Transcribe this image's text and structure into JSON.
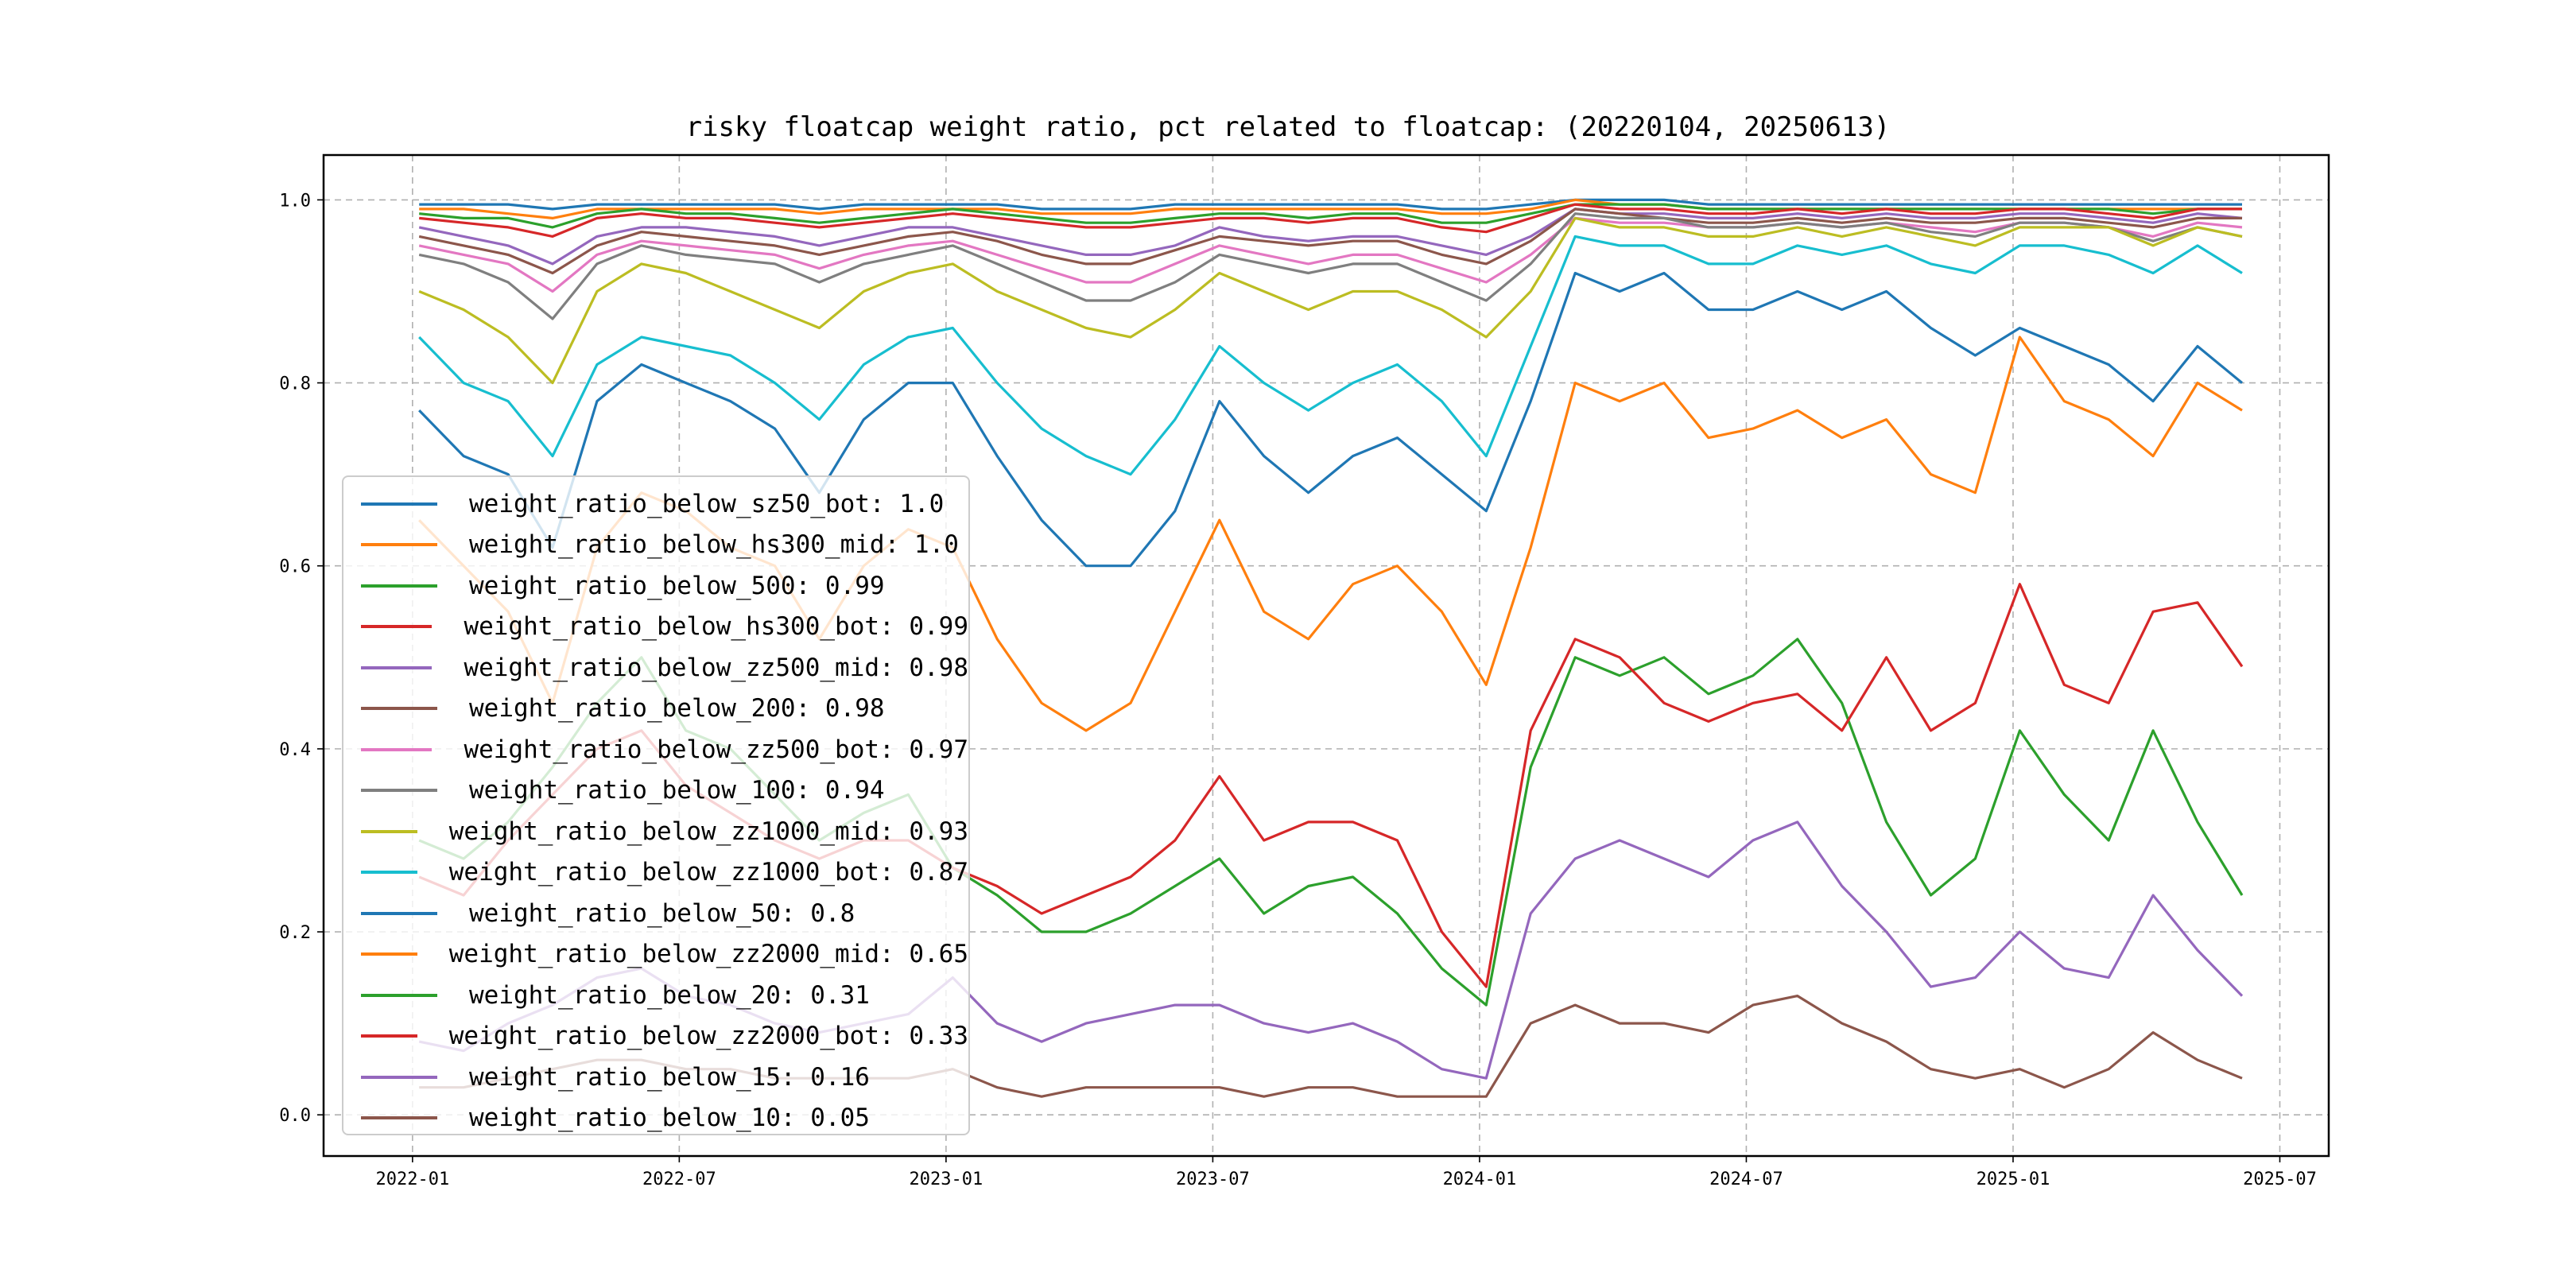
{
  "chart_data": {
    "type": "line",
    "title": "risky floatcap weight ratio, pct related to floatcap: (20220104, 20250613)",
    "xlabel": "",
    "ylabel": "",
    "x_ticks": [
      "2022-01",
      "2022-07",
      "2023-01",
      "2023-07",
      "2024-01",
      "2024-07",
      "2025-01",
      "2025-07"
    ],
    "y_ticks": [
      "0.0",
      "0.2",
      "0.4",
      "0.6",
      "0.8",
      "1.0"
    ],
    "ylim": [
      -0.045,
      1.049
    ],
    "xlim_months_from_2022_01": [
      -2.0,
      43.1
    ],
    "grid": true,
    "legend_position": "lower-left",
    "x": [
      "2022-01",
      "2022-02",
      "2022-03",
      "2022-04",
      "2022-05",
      "2022-06",
      "2022-07",
      "2022-08",
      "2022-09",
      "2022-10",
      "2022-11",
      "2022-12",
      "2023-01",
      "2023-02",
      "2023-03",
      "2023-04",
      "2023-05",
      "2023-06",
      "2023-07",
      "2023-08",
      "2023-09",
      "2023-10",
      "2023-11",
      "2023-12",
      "2024-01",
      "2024-02",
      "2024-03",
      "2024-04",
      "2024-05",
      "2024-06",
      "2024-07",
      "2024-08",
      "2024-09",
      "2024-10",
      "2024-11",
      "2024-12",
      "2025-01",
      "2025-02",
      "2025-03",
      "2025-04",
      "2025-05",
      "2025-06"
    ],
    "series": [
      {
        "name": "weight_ratio_below_sz50_bot: 1.0",
        "color": "#1f77b4",
        "values": [
          0.995,
          0.995,
          0.995,
          0.99,
          0.995,
          0.995,
          0.995,
          0.995,
          0.995,
          0.99,
          0.995,
          0.995,
          0.995,
          0.995,
          0.99,
          0.99,
          0.99,
          0.995,
          0.995,
          0.995,
          0.995,
          0.995,
          0.995,
          0.99,
          0.99,
          0.995,
          1.0,
          1.0,
          1.0,
          0.995,
          0.995,
          0.995,
          0.995,
          0.995,
          0.995,
          0.995,
          0.995,
          0.995,
          0.995,
          0.995,
          0.995,
          0.995
        ]
      },
      {
        "name": "weight_ratio_below_hs300_mid: 1.0",
        "color": "#ff7f0e",
        "values": [
          0.99,
          0.99,
          0.985,
          0.98,
          0.99,
          0.99,
          0.99,
          0.99,
          0.99,
          0.985,
          0.99,
          0.99,
          0.99,
          0.99,
          0.985,
          0.985,
          0.985,
          0.99,
          0.99,
          0.99,
          0.99,
          0.99,
          0.99,
          0.985,
          0.985,
          0.99,
          1.0,
          0.995,
          0.995,
          0.99,
          0.99,
          0.99,
          0.99,
          0.99,
          0.99,
          0.99,
          0.99,
          0.99,
          0.99,
          0.99,
          0.99,
          0.99
        ]
      },
      {
        "name": "weight_ratio_below_500: 0.99",
        "color": "#2ca02c",
        "values": [
          0.985,
          0.98,
          0.98,
          0.97,
          0.985,
          0.99,
          0.985,
          0.985,
          0.98,
          0.975,
          0.98,
          0.985,
          0.99,
          0.985,
          0.98,
          0.975,
          0.975,
          0.98,
          0.985,
          0.985,
          0.98,
          0.985,
          0.985,
          0.975,
          0.975,
          0.985,
          0.995,
          0.995,
          0.995,
          0.99,
          0.99,
          0.99,
          0.99,
          0.99,
          0.99,
          0.99,
          0.99,
          0.99,
          0.99,
          0.985,
          0.99,
          0.99
        ]
      },
      {
        "name": "weight_ratio_below_hs300_bot: 0.99",
        "color": "#d62728",
        "values": [
          0.98,
          0.975,
          0.97,
          0.96,
          0.98,
          0.985,
          0.98,
          0.98,
          0.975,
          0.97,
          0.975,
          0.98,
          0.985,
          0.98,
          0.975,
          0.97,
          0.97,
          0.975,
          0.98,
          0.98,
          0.975,
          0.98,
          0.98,
          0.97,
          0.965,
          0.98,
          0.995,
          0.99,
          0.99,
          0.985,
          0.985,
          0.99,
          0.985,
          0.99,
          0.985,
          0.985,
          0.99,
          0.99,
          0.985,
          0.98,
          0.99,
          0.99
        ]
      },
      {
        "name": "weight_ratio_below_zz500_mid: 0.98",
        "color": "#9467bd",
        "values": [
          0.97,
          0.96,
          0.95,
          0.93,
          0.96,
          0.97,
          0.97,
          0.965,
          0.96,
          0.95,
          0.96,
          0.97,
          0.97,
          0.96,
          0.95,
          0.94,
          0.94,
          0.95,
          0.97,
          0.96,
          0.955,
          0.96,
          0.96,
          0.95,
          0.94,
          0.96,
          0.99,
          0.985,
          0.985,
          0.98,
          0.98,
          0.985,
          0.98,
          0.985,
          0.98,
          0.98,
          0.985,
          0.985,
          0.98,
          0.975,
          0.985,
          0.98
        ]
      },
      {
        "name": "weight_ratio_below_200: 0.98",
        "color": "#8c564b",
        "values": [
          0.96,
          0.95,
          0.94,
          0.92,
          0.95,
          0.965,
          0.96,
          0.955,
          0.95,
          0.94,
          0.95,
          0.96,
          0.965,
          0.955,
          0.94,
          0.93,
          0.93,
          0.945,
          0.96,
          0.955,
          0.95,
          0.955,
          0.955,
          0.94,
          0.93,
          0.955,
          0.99,
          0.985,
          0.98,
          0.975,
          0.975,
          0.98,
          0.975,
          0.98,
          0.975,
          0.975,
          0.98,
          0.98,
          0.975,
          0.97,
          0.98,
          0.98
        ]
      },
      {
        "name": "weight_ratio_below_zz500_bot: 0.97",
        "color": "#e377c2",
        "values": [
          0.95,
          0.94,
          0.93,
          0.9,
          0.94,
          0.955,
          0.95,
          0.945,
          0.94,
          0.925,
          0.94,
          0.95,
          0.955,
          0.94,
          0.925,
          0.91,
          0.91,
          0.93,
          0.95,
          0.94,
          0.93,
          0.94,
          0.94,
          0.925,
          0.91,
          0.94,
          0.98,
          0.975,
          0.975,
          0.97,
          0.97,
          0.975,
          0.97,
          0.975,
          0.97,
          0.965,
          0.975,
          0.975,
          0.97,
          0.96,
          0.975,
          0.97
        ]
      },
      {
        "name": "weight_ratio_below_100: 0.94",
        "color": "#7f7f7f",
        "values": [
          0.94,
          0.93,
          0.91,
          0.87,
          0.93,
          0.95,
          0.94,
          0.935,
          0.93,
          0.91,
          0.93,
          0.94,
          0.95,
          0.93,
          0.91,
          0.89,
          0.89,
          0.91,
          0.94,
          0.93,
          0.92,
          0.93,
          0.93,
          0.91,
          0.89,
          0.93,
          0.985,
          0.98,
          0.98,
          0.97,
          0.97,
          0.975,
          0.97,
          0.975,
          0.965,
          0.96,
          0.975,
          0.975,
          0.97,
          0.955,
          0.97,
          0.96
        ]
      },
      {
        "name": "weight_ratio_below_zz1000_mid: 0.93",
        "color": "#bcbd22",
        "values": [
          0.9,
          0.88,
          0.85,
          0.8,
          0.9,
          0.93,
          0.92,
          0.9,
          0.88,
          0.86,
          0.9,
          0.92,
          0.93,
          0.9,
          0.88,
          0.86,
          0.85,
          0.88,
          0.92,
          0.9,
          0.88,
          0.9,
          0.9,
          0.88,
          0.85,
          0.9,
          0.98,
          0.97,
          0.97,
          0.96,
          0.96,
          0.97,
          0.96,
          0.97,
          0.96,
          0.95,
          0.97,
          0.97,
          0.97,
          0.95,
          0.97,
          0.96
        ]
      },
      {
        "name": "weight_ratio_below_zz1000_bot: 0.87",
        "color": "#17becf",
        "values": [
          0.85,
          0.8,
          0.78,
          0.72,
          0.82,
          0.85,
          0.84,
          0.83,
          0.8,
          0.76,
          0.82,
          0.85,
          0.86,
          0.8,
          0.75,
          0.72,
          0.7,
          0.76,
          0.84,
          0.8,
          0.77,
          0.8,
          0.82,
          0.78,
          0.72,
          0.84,
          0.96,
          0.95,
          0.95,
          0.93,
          0.93,
          0.95,
          0.94,
          0.95,
          0.93,
          0.92,
          0.95,
          0.95,
          0.94,
          0.92,
          0.95,
          0.92
        ]
      },
      {
        "name": "weight_ratio_below_50: 0.8",
        "color": "#1f77b4",
        "values": [
          0.77,
          0.72,
          0.7,
          0.62,
          0.78,
          0.82,
          0.8,
          0.78,
          0.75,
          0.68,
          0.76,
          0.8,
          0.8,
          0.72,
          0.65,
          0.6,
          0.6,
          0.66,
          0.78,
          0.72,
          0.68,
          0.72,
          0.74,
          0.7,
          0.66,
          0.78,
          0.92,
          0.9,
          0.92,
          0.88,
          0.88,
          0.9,
          0.88,
          0.9,
          0.86,
          0.83,
          0.86,
          0.84,
          0.82,
          0.78,
          0.84,
          0.8
        ]
      },
      {
        "name": "weight_ratio_below_zz2000_mid: 0.65",
        "color": "#ff7f0e",
        "values": [
          0.65,
          0.6,
          0.55,
          0.45,
          0.62,
          0.68,
          0.66,
          0.62,
          0.6,
          0.52,
          0.6,
          0.64,
          0.62,
          0.52,
          0.45,
          0.42,
          0.45,
          0.55,
          0.65,
          0.55,
          0.52,
          0.58,
          0.6,
          0.55,
          0.47,
          0.62,
          0.8,
          0.78,
          0.8,
          0.74,
          0.75,
          0.77,
          0.74,
          0.76,
          0.7,
          0.68,
          0.85,
          0.78,
          0.76,
          0.72,
          0.8,
          0.77
        ]
      },
      {
        "name": "weight_ratio_below_20: 0.31",
        "color": "#2ca02c",
        "values": [
          0.3,
          0.28,
          0.32,
          0.38,
          0.45,
          0.5,
          0.42,
          0.4,
          0.35,
          0.3,
          0.33,
          0.35,
          0.27,
          0.24,
          0.2,
          0.2,
          0.22,
          0.25,
          0.28,
          0.22,
          0.25,
          0.26,
          0.22,
          0.16,
          0.12,
          0.38,
          0.5,
          0.48,
          0.5,
          0.46,
          0.48,
          0.52,
          0.45,
          0.32,
          0.24,
          0.28,
          0.42,
          0.35,
          0.3,
          0.42,
          0.32,
          0.24
        ]
      },
      {
        "name": "weight_ratio_below_zz2000_bot: 0.33",
        "color": "#d62728",
        "values": [
          0.26,
          0.24,
          0.3,
          0.35,
          0.4,
          0.42,
          0.36,
          0.33,
          0.3,
          0.28,
          0.3,
          0.3,
          0.27,
          0.25,
          0.22,
          0.24,
          0.26,
          0.3,
          0.37,
          0.3,
          0.32,
          0.32,
          0.3,
          0.2,
          0.14,
          0.42,
          0.52,
          0.5,
          0.45,
          0.43,
          0.45,
          0.46,
          0.42,
          0.5,
          0.42,
          0.45,
          0.58,
          0.47,
          0.45,
          0.55,
          0.56,
          0.49
        ]
      },
      {
        "name": "weight_ratio_below_15: 0.16",
        "color": "#9467bd",
        "values": [
          0.08,
          0.07,
          0.1,
          0.12,
          0.15,
          0.16,
          0.13,
          0.12,
          0.1,
          0.09,
          0.1,
          0.11,
          0.15,
          0.1,
          0.08,
          0.1,
          0.11,
          0.12,
          0.12,
          0.1,
          0.09,
          0.1,
          0.08,
          0.05,
          0.04,
          0.22,
          0.28,
          0.3,
          0.28,
          0.26,
          0.3,
          0.32,
          0.25,
          0.2,
          0.14,
          0.15,
          0.2,
          0.16,
          0.15,
          0.24,
          0.18,
          0.13
        ]
      },
      {
        "name": "weight_ratio_below_10: 0.05",
        "color": "#8c564b",
        "values": [
          0.03,
          0.03,
          0.04,
          0.05,
          0.06,
          0.06,
          0.05,
          0.05,
          0.04,
          0.04,
          0.04,
          0.04,
          0.05,
          0.03,
          0.02,
          0.03,
          0.03,
          0.03,
          0.03,
          0.02,
          0.03,
          0.03,
          0.02,
          0.02,
          0.02,
          0.1,
          0.12,
          0.1,
          0.1,
          0.09,
          0.12,
          0.13,
          0.1,
          0.08,
          0.05,
          0.04,
          0.05,
          0.03,
          0.05,
          0.09,
          0.06,
          0.04
        ]
      }
    ]
  }
}
